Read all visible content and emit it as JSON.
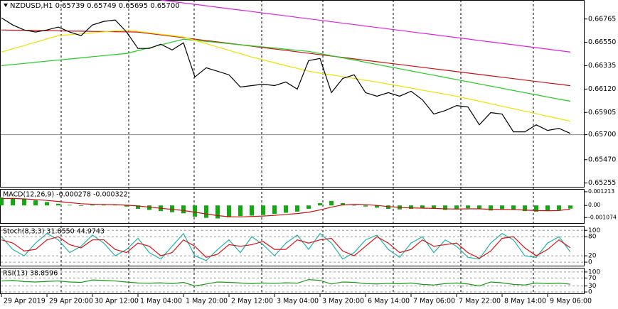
{
  "chart_data": [
    {
      "type": "line",
      "title": "NZDUSD,H1  0.65739 0.65749 0.65695 0.65700",
      "categories": [
        "29 Apr 2019",
        null,
        null,
        null,
        "29 Apr 20:00",
        null,
        null,
        null,
        "30 Apr 12:00",
        null,
        null,
        null,
        "1 May 04:00",
        null,
        null,
        null,
        "1 May 20:00",
        null,
        null,
        null,
        "2 May 12:00",
        null,
        null,
        null,
        "3 May 04:00",
        null,
        null,
        null,
        "3 May 20:00",
        null,
        null,
        null,
        "6 May 14:00",
        null,
        null,
        null,
        "7 May 06:00",
        null,
        null,
        null,
        "7 May 22:00",
        null,
        null,
        null,
        "8 May 14:00",
        null,
        null,
        null,
        "9 May 06:00",
        null,
        null
      ],
      "ylim": [
        0.6522,
        0.6694
      ],
      "yticks": [
        0.66765,
        {
          "value": 0.6655,
          "label": "0.66550"
        },
        0.66335,
        {
          "value": 0.6612,
          "label": "0.66120"
        },
        0.65905,
        {
          "value": 0.657,
          "label": "0.65700"
        },
        {
          "value": 0.6547,
          "label": "0.65470"
        },
        0.65255
      ],
      "price_line": 0.657,
      "series": [
        {
          "color": "#e020e0",
          "values": [
            null,
            null,
            null,
            null,
            null,
            null,
            null,
            null,
            null,
            null,
            null,
            null,
            null,
            null,
            0.6694,
            0.66927,
            0.66913,
            0.669,
            0.66887,
            0.66873,
            0.6686,
            0.66847,
            0.66834,
            0.6682,
            0.66807,
            0.66794,
            0.6678,
            0.66767,
            0.66754,
            0.6674,
            0.66727,
            0.66714,
            0.667,
            0.66687,
            0.66674,
            0.66661,
            0.66647,
            0.66634,
            0.66621,
            0.66607,
            0.66594,
            0.66581,
            0.66567,
            0.66554,
            0.66541,
            0.66528,
            0.66514,
            0.66501,
            0.66488,
            0.66474,
            0.66461
          ]
        },
        {
          "color": "#cc1010",
          "values": [
            0.66664,
            0.66662,
            0.66661,
            0.66659,
            0.66658,
            0.66656,
            0.66654,
            0.66653,
            0.66651,
            0.6665,
            0.66648,
            0.66646,
            0.66645,
            0.66632,
            0.66619,
            0.66606,
            0.66593,
            0.6658,
            0.66567,
            0.66554,
            0.66541,
            0.66528,
            0.66515,
            0.66502,
            0.66489,
            0.66476,
            0.66463,
            0.6645,
            0.66437,
            0.66424,
            0.66411,
            0.66398,
            0.66385,
            0.66372,
            0.66359,
            0.66346,
            0.66333,
            0.6632,
            0.66307,
            0.66294,
            0.66281,
            0.66268,
            0.66255,
            0.66242,
            0.66229,
            0.66216,
            0.66203,
            0.6619,
            0.66177,
            0.66164,
            0.66151
          ]
        },
        {
          "color": "#22cc22",
          "values": [
            0.66336,
            0.66346,
            0.66356,
            0.66367,
            0.66377,
            0.66387,
            0.66397,
            0.66407,
            0.66418,
            0.66428,
            0.66438,
            0.66448,
            0.66474,
            0.665,
            0.66527,
            0.66553,
            0.66579,
            0.66569,
            0.66559,
            0.66549,
            0.66538,
            0.66528,
            0.66518,
            0.66508,
            0.66498,
            0.66487,
            0.66477,
            0.66467,
            0.66447,
            0.66427,
            0.66407,
            0.66387,
            0.66367,
            0.66347,
            0.66327,
            0.66307,
            0.66287,
            0.66267,
            0.66247,
            0.66227,
            0.66207,
            0.66187,
            0.66167,
            0.66147,
            0.66127,
            0.66107,
            0.66087,
            0.66067,
            0.66047,
            0.66027,
            0.66008
          ]
        },
        {
          "color": "#f0e000",
          "values": [
            0.66461,
            0.66491,
            0.66521,
            0.66551,
            0.66582,
            0.66612,
            0.6662,
            0.66629,
            0.66638,
            0.66647,
            0.66656,
            0.66664,
            0.66651,
            0.66638,
            0.66625,
            0.66612,
            0.66599,
            0.66568,
            0.66538,
            0.66507,
            0.66476,
            0.66446,
            0.66415,
            0.66389,
            0.66362,
            0.66336,
            0.6631,
            0.66284,
            0.66267,
            0.66251,
            0.66234,
            0.66218,
            0.66201,
            0.66185,
            0.66166,
            0.66148,
            0.66129,
            0.6611,
            0.66091,
            0.66073,
            0.66054,
            0.66031,
            0.66008,
            0.65985,
            0.65962,
            0.65939,
            0.65916,
            0.65893,
            0.6587,
            0.65847,
            0.65824
          ]
        },
        {
          "color": "#000000",
          "values": [
            0.66776,
            0.6671,
            0.66664,
            0.66645,
            0.66664,
            0.66691,
            0.66645,
            0.66612,
            0.6671,
            0.66743,
            0.66756,
            0.66645,
            0.66494,
            0.66494,
            0.66533,
            0.6648,
            0.66546,
            0.66231,
            0.66316,
            0.66284,
            0.66251,
            0.66139,
            0.66152,
            0.66165,
            0.66152,
            0.66185,
            0.66119,
            0.66382,
            0.66402,
            0.66087,
            0.66218,
            0.66251,
            0.66087,
            0.66054,
            0.66087,
            0.66054,
            0.661,
            0.66021,
            0.6589,
            0.65922,
            0.65968,
            0.65955,
            0.65791,
            0.65903,
            0.6589,
            0.65726,
            0.65726,
            0.65791,
            0.65739,
            0.65758,
            0.65712
          ]
        }
      ]
    },
    {
      "type": "bar",
      "title": "MACD(12,26,9) -0.000278 -0.000322",
      "ylim": [
        -0.00156,
        0.00146
      ],
      "yticks": [
        0.001213,
        {
          "value": 0,
          "label": "0.00"
        },
        -0.001074
      ],
      "series": [
        {
          "type": "bar",
          "color": "#11aa11",
          "values": [
            0.0007,
            0.00065,
            0.00055,
            0.00045,
            0.0003,
            0.00015,
            5e-05,
            -5e-05,
            5e-05,
            0.0001,
            5e-05,
            -0.0001,
            -0.0003,
            -0.0004,
            -0.0005,
            -0.0006,
            -0.0007,
            -0.001,
            -0.0011,
            -0.00115,
            -0.00105,
            -0.00095,
            -0.0009,
            -0.00085,
            -0.00075,
            -0.00065,
            -0.00055,
            -0.0003,
            0.0002,
            0.0004,
            0.0002,
            0,
            -0.0001,
            -0.0002,
            -0.0003,
            -0.00035,
            -0.0003,
            -0.00025,
            -0.0003,
            -0.0004,
            -0.00035,
            -0.00025,
            -0.0003,
            -0.00045,
            -0.00035,
            -0.0004,
            -0.0005,
            -0.00055,
            -0.0005,
            -0.0004,
            -0.00028
          ]
        },
        {
          "type": "line",
          "color": "#cc1010",
          "values": [
            0.0006,
            0.00062,
            0.00058,
            0.00052,
            0.00044,
            0.00035,
            0.00025,
            0.00015,
            0.0001,
            8e-05,
            7e-05,
            3e-05,
            -5e-05,
            -0.00015,
            -0.00025,
            -0.00035,
            -0.00045,
            -0.0006,
            -0.00075,
            -0.0009,
            -0.001,
            -0.00102,
            -0.00098,
            -0.00094,
            -0.00088,
            -0.0008,
            -0.00072,
            -0.0006,
            -0.0004,
            -0.00015,
            5e-05,
            0.0001,
            8e-05,
            0,
            -0.0001,
            -0.00018,
            -0.00022,
            -0.00024,
            -0.00026,
            -0.0003,
            -0.00032,
            -0.0003,
            -0.0003,
            -0.00034,
            -0.00035,
            -0.00037,
            -0.00041,
            -0.00045,
            -0.00047,
            -0.00045,
            -0.00032
          ]
        }
      ]
    },
    {
      "type": "line",
      "title": "Stoch(8,3,3) 31.8550 44.9743",
      "grid": true,
      "ylim": [
        -11,
        114
      ],
      "yticks": [
        100,
        80,
        20,
        0
      ],
      "series": [
        {
          "color": "#20b2aa",
          "values": [
            80,
            40,
            20,
            60,
            90,
            70,
            30,
            50,
            85,
            60,
            20,
            40,
            75,
            30,
            10,
            50,
            90,
            20,
            5,
            40,
            70,
            30,
            80,
            55,
            20,
            60,
            85,
            40,
            90,
            60,
            10,
            30,
            70,
            85,
            40,
            15,
            60,
            80,
            30,
            70,
            50,
            15,
            10,
            60,
            90,
            70,
            20,
            15,
            60,
            80,
            32
          ]
        },
        {
          "color": "#dd1111",
          "values": [
            70,
            60,
            35,
            40,
            70,
            80,
            55,
            45,
            70,
            70,
            40,
            30,
            60,
            50,
            20,
            30,
            70,
            50,
            15,
            25,
            55,
            50,
            55,
            65,
            40,
            40,
            70,
            60,
            70,
            75,
            35,
            20,
            50,
            80,
            60,
            30,
            40,
            70,
            50,
            55,
            60,
            30,
            12,
            35,
            75,
            80,
            45,
            20,
            40,
            70,
            45
          ]
        }
      ]
    },
    {
      "type": "line",
      "title": "RSI(13) 38.8596",
      "grid": true,
      "ylim": [
        -7,
        121
      ],
      "yticks": [
        100,
        70,
        30,
        0
      ],
      "series": [
        {
          "color": "#1a9a1a",
          "values": [
            55,
            58,
            52,
            50,
            53,
            55,
            50,
            48,
            60,
            58,
            55,
            50,
            45,
            44,
            46,
            42,
            48,
            30,
            40,
            50,
            48,
            45,
            42,
            45,
            43,
            46,
            44,
            62,
            58,
            40,
            50,
            48,
            42,
            40,
            43,
            41,
            45,
            38,
            35,
            42,
            45,
            40,
            30,
            50,
            46,
            38,
            35,
            45,
            42,
            44,
            39
          ]
        }
      ]
    }
  ]
}
